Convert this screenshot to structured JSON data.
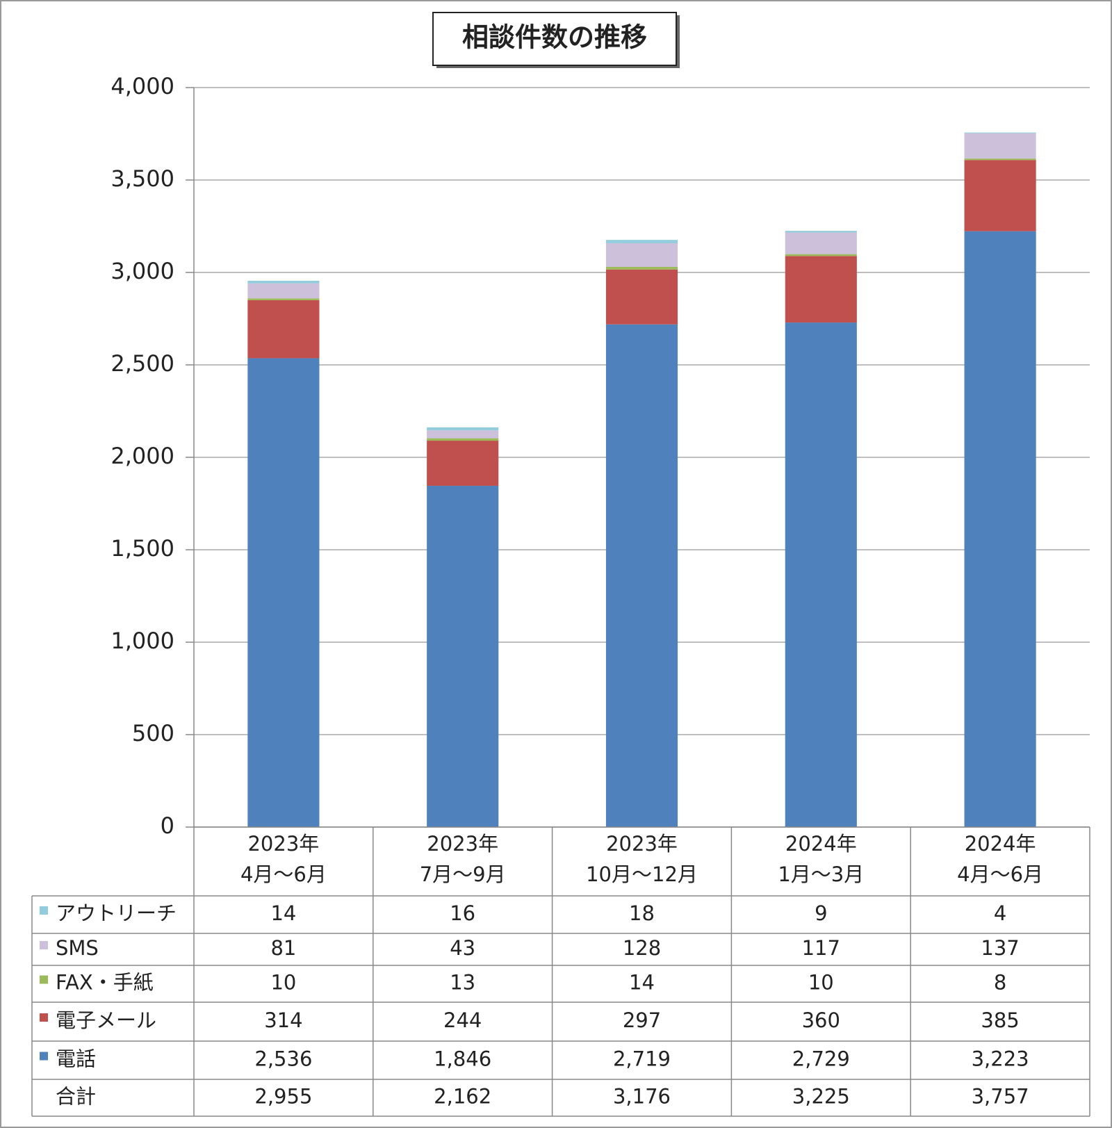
{
  "chart_data": {
    "type": "stacked_bar",
    "title": "相談件数の推移",
    "categories": [
      [
        "2023年",
        "4月～6月"
      ],
      [
        "2023年",
        "7月～9月"
      ],
      [
        "2023年",
        "10月～12月"
      ],
      [
        "2024年",
        "1月～3月"
      ],
      [
        "2024年",
        "4月～6月"
      ]
    ],
    "series": [
      {
        "name": "電話",
        "color": "#4f81bd",
        "values": [
          2536,
          1846,
          2719,
          2729,
          3223
        ],
        "value_labels": [
          "2,536",
          "1,846",
          "2,719",
          "2,729",
          "3,223"
        ]
      },
      {
        "name": "電子メール",
        "color": "#c0504d",
        "values": [
          314,
          244,
          297,
          360,
          385
        ]
      },
      {
        "name": "FAX・手紙",
        "color": "#9bbb59",
        "values": [
          10,
          13,
          14,
          10,
          8
        ]
      },
      {
        "name": "SMS",
        "color": "#ccc0da",
        "values": [
          81,
          43,
          128,
          117,
          137
        ]
      },
      {
        "name": "アウトリーチ",
        "color": "#93cddd",
        "values": [
          14,
          16,
          18,
          9,
          4
        ]
      }
    ],
    "totals": {
      "name": "合計",
      "values": [
        2955,
        2162,
        3176,
        3225,
        3757
      ],
      "value_labels": [
        "2,955",
        "2,162",
        "3,176",
        "3,225",
        "3,757"
      ]
    },
    "ylim": [
      0,
      4000
    ],
    "yticks": [
      0,
      500,
      {
        "value": 1000,
        "label": "1,000"
      },
      {
        "value": 1500,
        "label": "1,500"
      },
      {
        "value": 2000,
        "label": "2,000"
      },
      {
        "value": 2500,
        "label": "2,500"
      },
      {
        "value": 3000,
        "label": "3,000"
      },
      {
        "value": 3500,
        "label": "3,500"
      },
      {
        "value": 4000,
        "label": "4,000"
      }
    ],
    "grid": true
  }
}
